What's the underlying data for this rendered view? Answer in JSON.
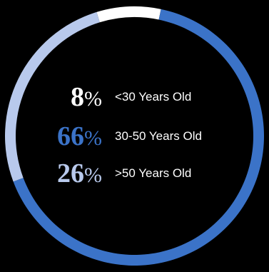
{
  "chart_data": {
    "type": "pie",
    "variant": "donut",
    "title": "",
    "categories": [
      "<30 Years Old",
      "30-50 Years Old",
      ">50 Years Old"
    ],
    "values": [
      8,
      66,
      26
    ],
    "value_labels": [
      "8",
      "66",
      "26"
    ],
    "percent_sign": "%",
    "colors": [
      "#ffffff",
      "#3b73c8",
      "#b8c9ec"
    ],
    "label_colors": [
      "#ffffff",
      "#3b73c8",
      "#b8c9ec"
    ]
  }
}
